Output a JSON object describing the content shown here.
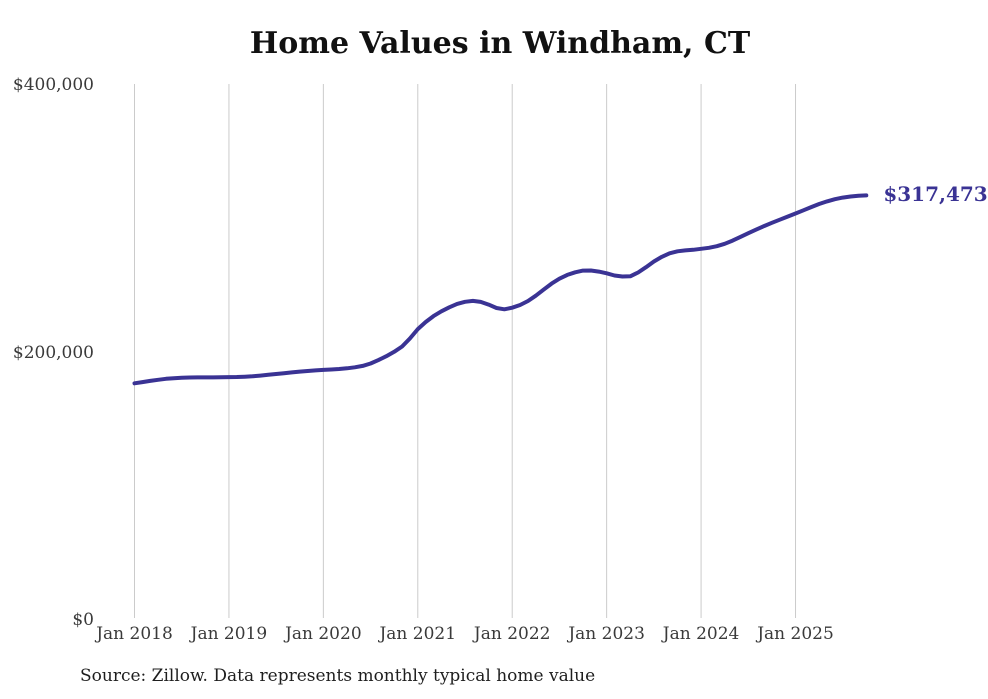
{
  "page": {
    "background": "#ffffff"
  },
  "chart": {
    "title": "Home Values in Windham, CT",
    "source_note": "Source: Zillow. Data represents monthly typical home value"
  },
  "chart_data": {
    "type": "line",
    "title": "Home Values in Windham, CT",
    "xlabel": "",
    "ylabel": "",
    "ylim": [
      0,
      400000
    ],
    "grid": "vertical-only",
    "legend": "none",
    "end_label": "$317,473",
    "end_value": 317473,
    "x_ticks": [
      "Jan 2018",
      "Jan 2019",
      "Jan 2020",
      "Jan 2021",
      "Jan 2022",
      "Jan 2023",
      "Jan 2024",
      "Jan 2025"
    ],
    "y_ticks": [
      {
        "label": "$0",
        "value": 0
      },
      {
        "label": "$200,000",
        "value": 200000
      },
      {
        "label": "$400,000",
        "value": 400000
      }
    ],
    "series": [
      {
        "name": "Monthly typical home value",
        "color": "#3a3394",
        "x": [
          "2018-01",
          "2018-02",
          "2018-03",
          "2018-04",
          "2018-05",
          "2018-06",
          "2018-07",
          "2018-08",
          "2018-09",
          "2018-10",
          "2018-11",
          "2018-12",
          "2019-01",
          "2019-02",
          "2019-03",
          "2019-04",
          "2019-05",
          "2019-06",
          "2019-07",
          "2019-08",
          "2019-09",
          "2019-10",
          "2019-11",
          "2019-12",
          "2020-01",
          "2020-02",
          "2020-03",
          "2020-04",
          "2020-05",
          "2020-06",
          "2020-07",
          "2020-08",
          "2020-09",
          "2020-10",
          "2020-11",
          "2020-12",
          "2021-01",
          "2021-02",
          "2021-03",
          "2021-04",
          "2021-05",
          "2021-06",
          "2021-07",
          "2021-08",
          "2021-09",
          "2021-10",
          "2021-11",
          "2021-12",
          "2022-01",
          "2022-02",
          "2022-03",
          "2022-04",
          "2022-05",
          "2022-06",
          "2022-07",
          "2022-08",
          "2022-09",
          "2022-10",
          "2022-11",
          "2022-12",
          "2023-01",
          "2023-02",
          "2023-03",
          "2023-04",
          "2023-05",
          "2023-06",
          "2023-07",
          "2023-08",
          "2023-09",
          "2023-10",
          "2023-11",
          "2023-12",
          "2024-01",
          "2024-02",
          "2024-03",
          "2024-04",
          "2024-05",
          "2024-06",
          "2024-07",
          "2024-08",
          "2024-09",
          "2024-10",
          "2024-11",
          "2024-12",
          "2025-01",
          "2025-02",
          "2025-03",
          "2025-04",
          "2025-05",
          "2025-06",
          "2025-07",
          "2025-08",
          "2025-09",
          "2025-10"
        ],
        "values": [
          177000,
          177900,
          178800,
          179600,
          180300,
          180800,
          181100,
          181300,
          181400,
          181400,
          181400,
          181500,
          181600,
          181700,
          181900,
          182200,
          182700,
          183300,
          183900,
          184500,
          185100,
          185700,
          186200,
          186600,
          187000,
          187300,
          187700,
          188200,
          188900,
          190000,
          191800,
          194300,
          197200,
          200500,
          204500,
          210500,
          217500,
          222800,
          227200,
          230800,
          233800,
          236300,
          237900,
          238600,
          237800,
          235800,
          233300,
          232300,
          233500,
          235500,
          238500,
          242500,
          247000,
          251500,
          255200,
          258000,
          260000,
          261200,
          261300,
          260500,
          259200,
          257600,
          256800,
          257000,
          259800,
          263800,
          268000,
          271500,
          274200,
          275700,
          276300,
          276800,
          277500,
          278300,
          279500,
          281300,
          283700,
          286400,
          289200,
          291900,
          294500,
          297000,
          299300,
          301600,
          303900,
          306300,
          308700,
          311000,
          313000,
          314600,
          315800,
          316600,
          317200,
          317473
        ]
      }
    ],
    "colors": {
      "line": "#3a3394",
      "end_label": "#3a3394",
      "grid": "#cbcbcb",
      "title": "#111111",
      "tick_text": "#3a3a3a",
      "source_text": "#1e1e1e",
      "background": "#ffffff"
    }
  }
}
